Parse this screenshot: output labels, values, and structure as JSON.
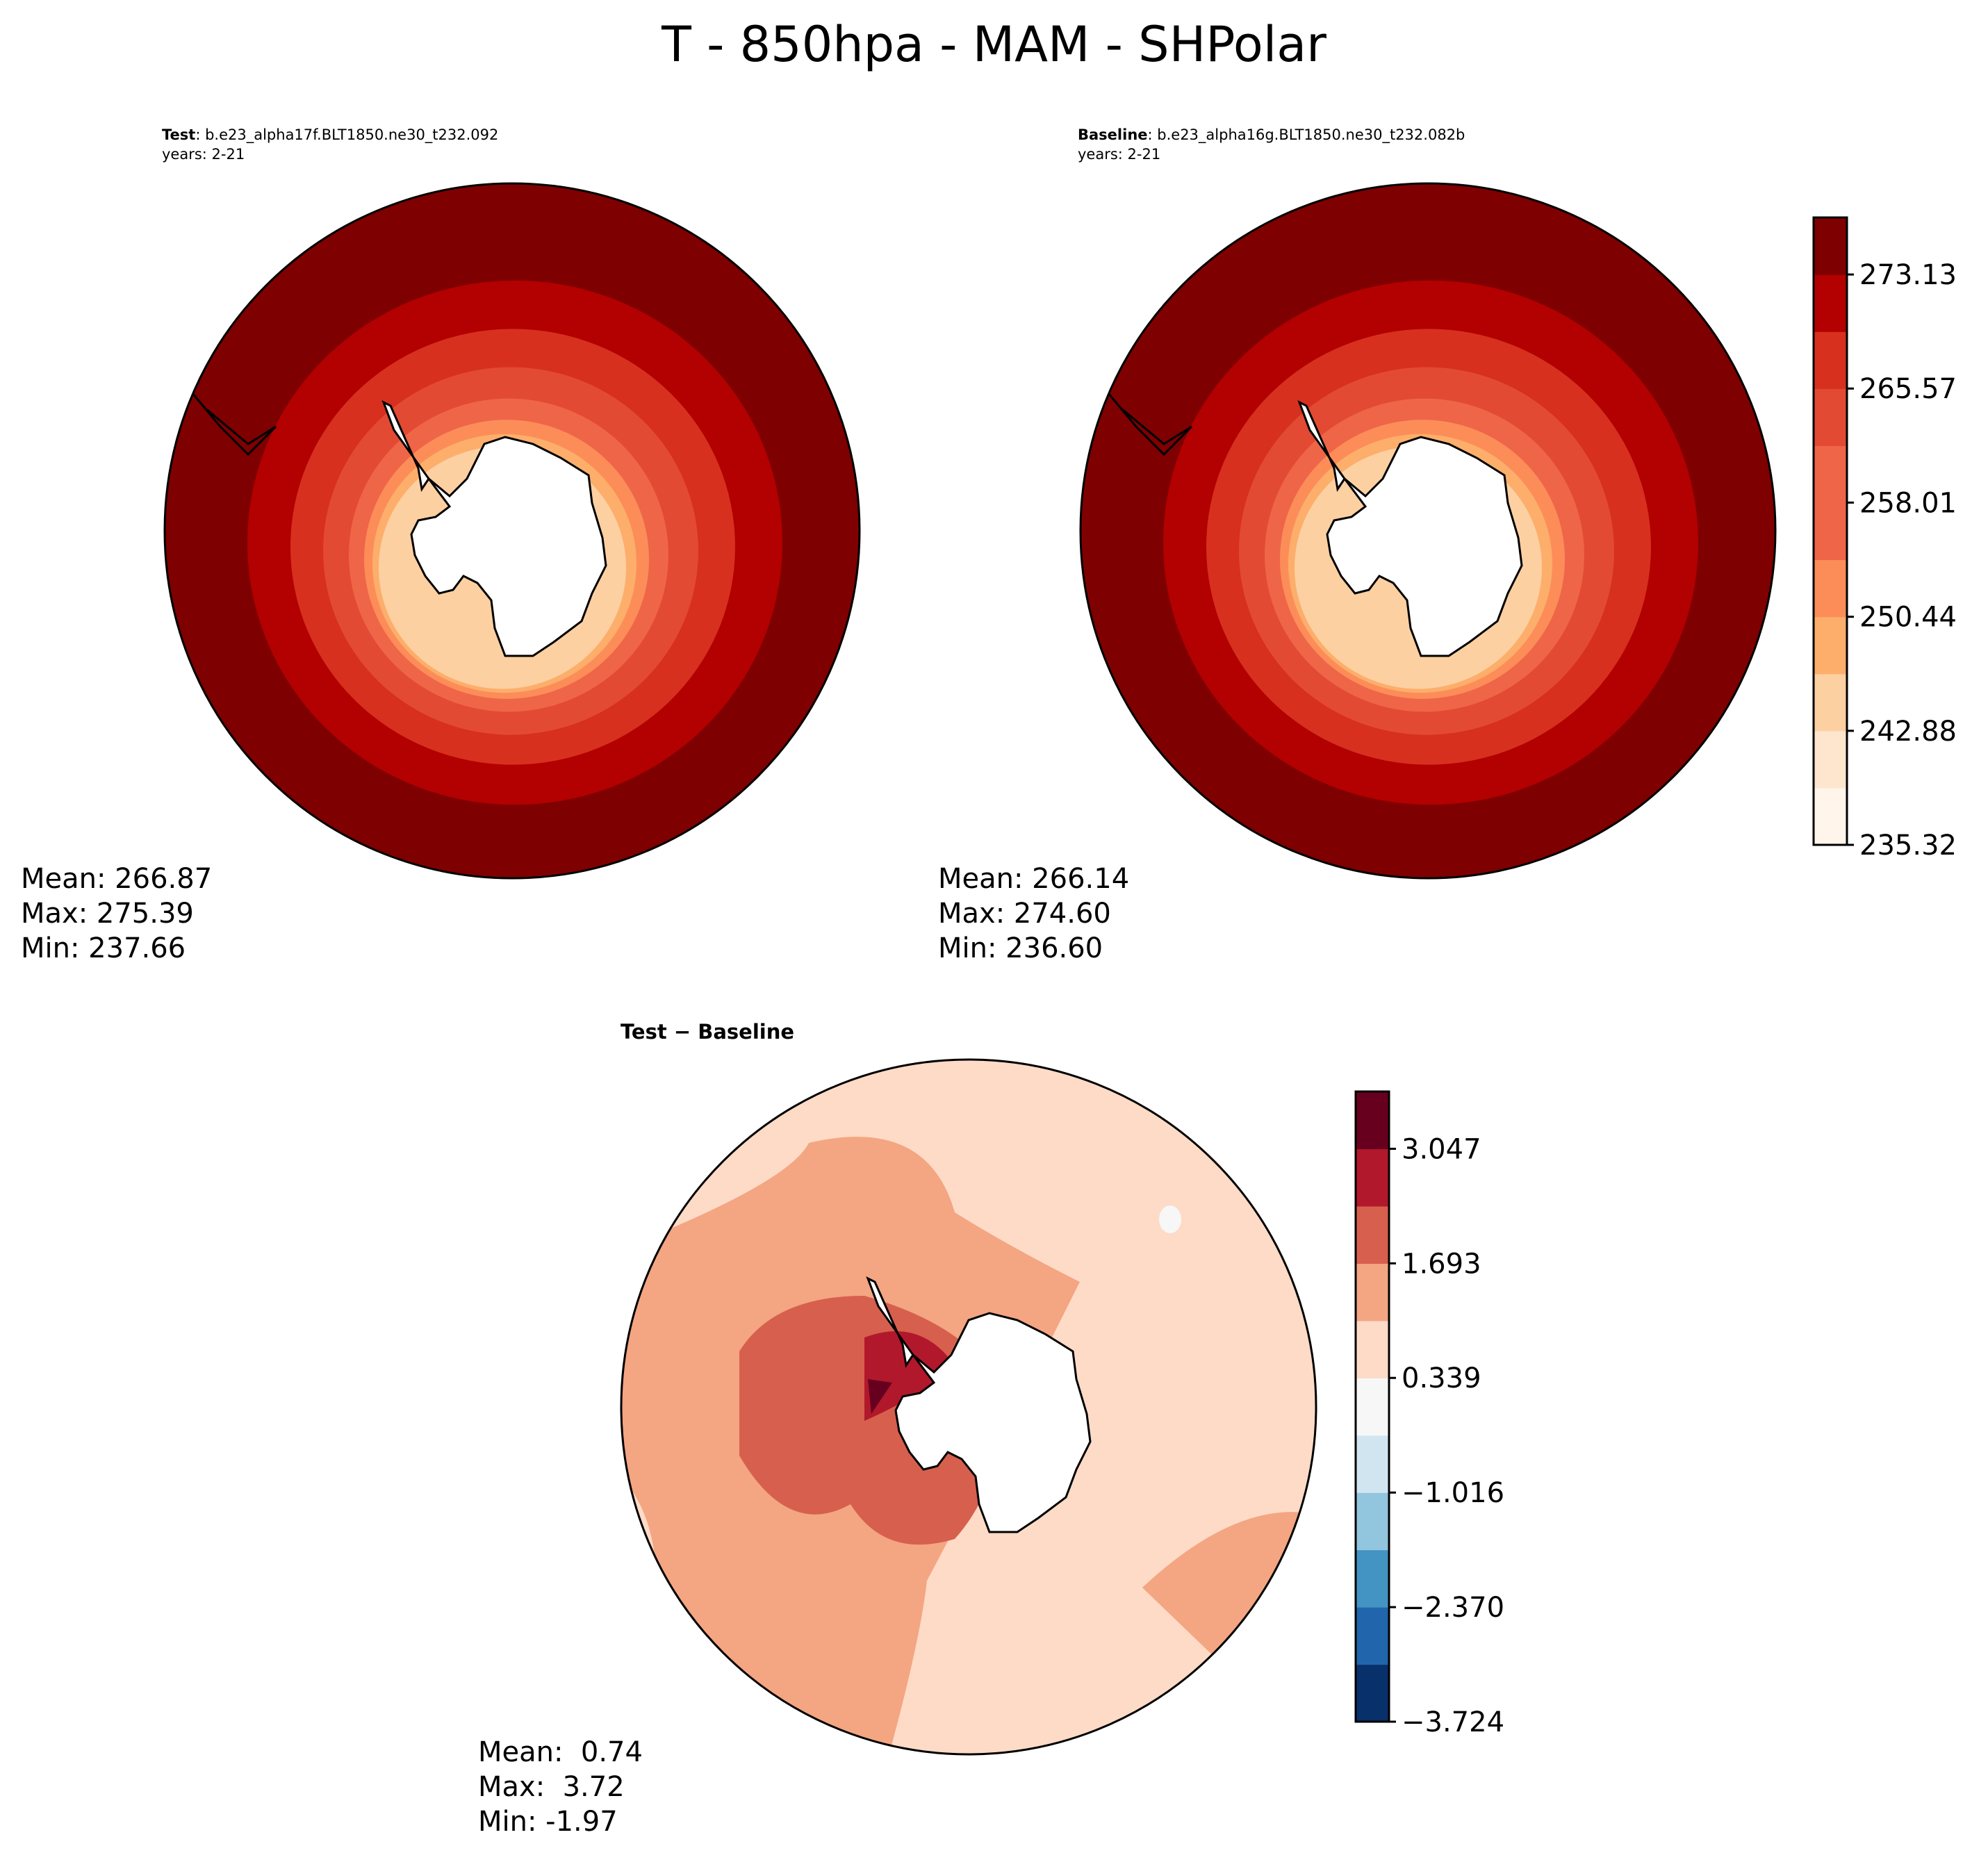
{
  "figure": {
    "title": "T - 850hpa - MAM - SHPolar"
  },
  "panels": {
    "test": {
      "label": "Test",
      "case": ": b.e23_alpha17f.BLT1850.ne30_t232.092",
      "years": "years: 2-21",
      "stats": {
        "mean": "Mean: 266.87",
        "max": "Max: 275.39",
        "min": "Min: 237.66"
      }
    },
    "baseline": {
      "label": "Baseline",
      "case": ": b.e23_alpha16g.BLT1850.ne30_t232.082b",
      "years": "years: 2-21",
      "stats": {
        "mean": "Mean: 266.14",
        "max": "Max: 274.60",
        "min": "Min: 236.60"
      }
    },
    "diff": {
      "title": "Test − Baseline",
      "stats": {
        "mean": "Mean:  0.74",
        "max": "Max:  3.72",
        "min": "Min: -1.97"
      }
    }
  },
  "colors": {
    "reds": [
      "#fff5eb",
      "#fee6ce",
      "#fdd0a2",
      "#fdae6b",
      "#fc8d59",
      "#ef6548",
      "#e34a33",
      "#d7301f",
      "#b30000",
      "#7f0000"
    ],
    "diverging": [
      "#08306b",
      "#2166ac",
      "#4393c3",
      "#92c5de",
      "#d1e5f0",
      "#f7f7f7",
      "#fddbc7",
      "#f4a582",
      "#d6604d",
      "#b2182b",
      "#67001f"
    ],
    "land": "#ffffff",
    "coast": "#000000"
  },
  "chart_data": [
    {
      "type": "heatmap",
      "name": "Test",
      "projection": "South polar stereographic",
      "colorbar_ticks": [
        "273.13",
        "265.57",
        "258.01",
        "250.44",
        "242.88",
        "235.32"
      ],
      "levels": [
        235.32,
        239.1,
        242.88,
        246.66,
        250.44,
        254.22,
        258.01,
        261.79,
        265.57,
        269.35,
        273.13,
        276.91
      ],
      "ring_values_outer_to_inner": [
        275.0,
        271.2,
        267.5,
        263.7,
        259.9,
        256.1,
        252.3,
        248.5,
        244.7
      ],
      "mean": 266.87,
      "max": 275.39,
      "min": 237.66
    },
    {
      "type": "heatmap",
      "name": "Baseline",
      "projection": "South polar stereographic",
      "colorbar_ticks": [
        "273.13",
        "265.57",
        "258.01",
        "250.44",
        "242.88",
        "235.32"
      ],
      "levels": [
        235.32,
        239.1,
        242.88,
        246.66,
        250.44,
        254.22,
        258.01,
        261.79,
        265.57,
        269.35,
        273.13,
        276.91
      ],
      "ring_values_outer_to_inner": [
        274.6,
        271.2,
        267.5,
        263.7,
        259.9,
        256.1,
        252.3,
        248.5,
        244.7
      ],
      "mean": 266.14,
      "max": 274.6,
      "min": 236.6
    },
    {
      "type": "heatmap",
      "name": "Test - Baseline",
      "projection": "South polar stereographic",
      "colorbar_ticks": [
        "3.047",
        "1.693",
        "0.339",
        "−1.016",
        "−2.370",
        "−3.724"
      ],
      "levels": [
        -3.724,
        -3.047,
        -2.37,
        -1.693,
        -1.016,
        -0.339,
        0.339,
        1.016,
        1.693,
        2.37,
        3.047,
        3.724
      ],
      "mean": 0.74,
      "max": 3.72,
      "min": -1.97
    }
  ]
}
